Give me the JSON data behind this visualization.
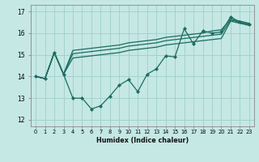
{
  "xlabel": "Humidex (Indice chaleur)",
  "background_color": "#c5e8e5",
  "grid_color": "#9ecec8",
  "line_color": "#1a6b60",
  "x_ticks": [
    0,
    1,
    2,
    3,
    4,
    5,
    6,
    7,
    8,
    9,
    10,
    11,
    12,
    13,
    14,
    15,
    16,
    17,
    18,
    19,
    20,
    21,
    22,
    23
  ],
  "ylim": [
    11.7,
    17.3
  ],
  "xlim": [
    -0.5,
    23.5
  ],
  "series_zigzag": [
    14.0,
    13.9,
    15.1,
    14.1,
    13.0,
    13.0,
    12.5,
    12.65,
    13.1,
    13.6,
    13.85,
    13.3,
    14.1,
    14.35,
    14.95,
    14.9,
    16.2,
    15.5,
    16.1,
    16.0,
    16.05,
    16.75,
    16.5,
    16.4
  ],
  "series_low": [
    14.0,
    13.9,
    15.1,
    14.1,
    14.85,
    14.9,
    14.95,
    15.0,
    15.05,
    15.1,
    15.2,
    15.25,
    15.3,
    15.35,
    15.45,
    15.5,
    15.55,
    15.6,
    15.65,
    15.7,
    15.75,
    16.55,
    16.45,
    16.35
  ],
  "series_mid": [
    14.0,
    13.9,
    15.1,
    14.1,
    15.05,
    15.1,
    15.15,
    15.2,
    15.25,
    15.3,
    15.4,
    15.45,
    15.5,
    15.55,
    15.65,
    15.7,
    15.75,
    15.8,
    15.85,
    15.9,
    15.95,
    16.6,
    16.5,
    16.4
  ],
  "series_high": [
    14.0,
    13.9,
    15.1,
    14.1,
    15.2,
    15.25,
    15.3,
    15.35,
    15.4,
    15.45,
    15.55,
    15.6,
    15.65,
    15.7,
    15.8,
    15.85,
    15.9,
    15.95,
    16.0,
    16.1,
    16.15,
    16.65,
    16.55,
    16.45
  ]
}
